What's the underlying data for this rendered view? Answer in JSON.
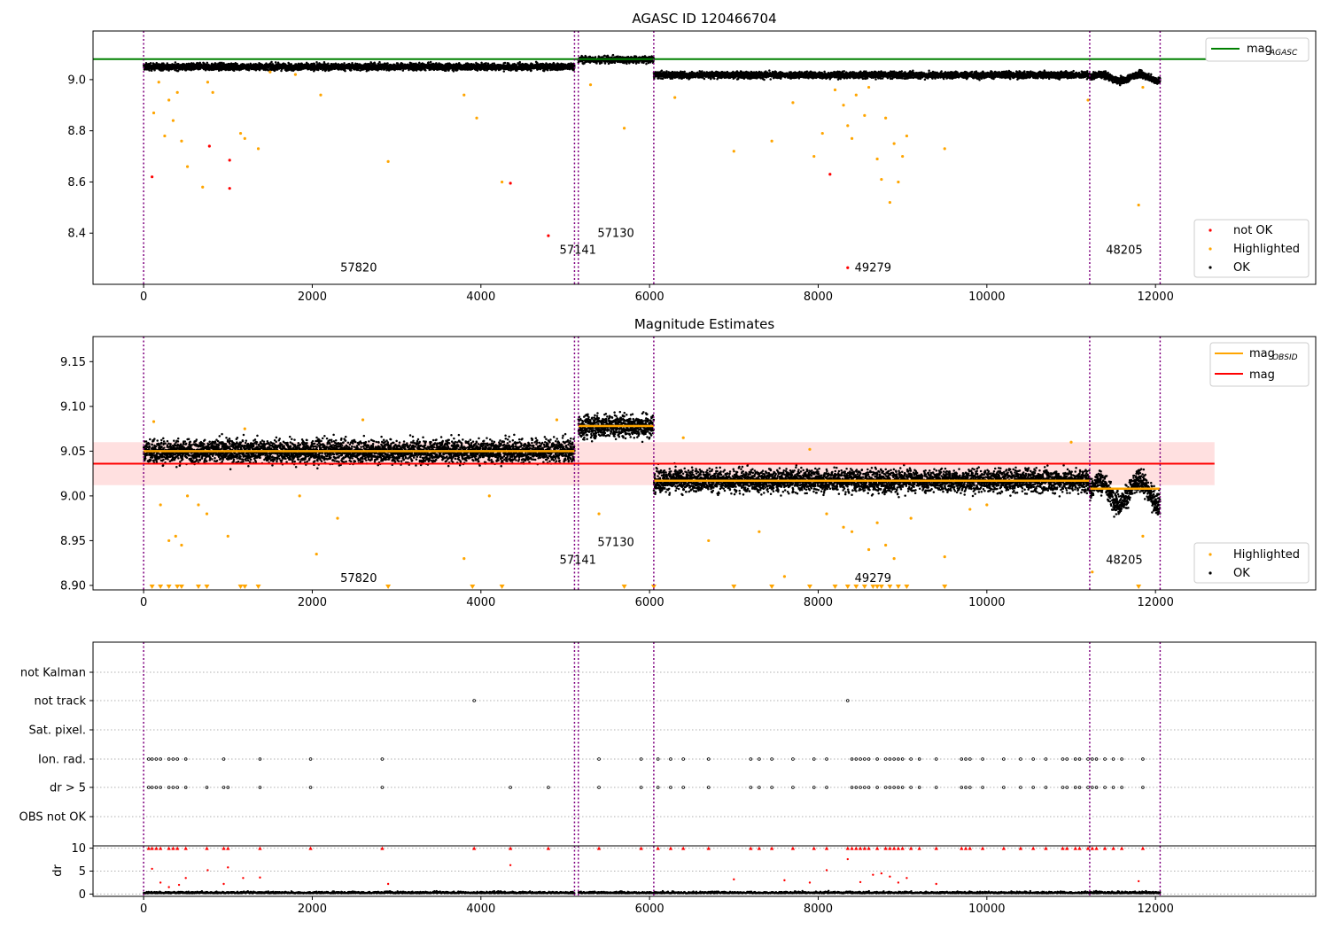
{
  "chart_data": [
    {
      "type": "scatter",
      "title": "AGASC ID 120466704",
      "xlim": [
        -600,
        13900
      ],
      "ylim": [
        8.2,
        9.19
      ],
      "xticks": [
        "0",
        "2000",
        "4000",
        "6000",
        "8000",
        "10000",
        "12000"
      ],
      "yticks": [
        "8.4",
        "8.6",
        "8.8",
        "9.0"
      ],
      "segment_lines": [
        0,
        5110,
        5155,
        6050,
        11220,
        12055
      ],
      "obsid_labels": [
        {
          "text": "57820",
          "x": 2550,
          "y": 8.25
        },
        {
          "text": "57141",
          "x": 5150,
          "y": 8.32
        },
        {
          "text": "57130",
          "x": 5600,
          "y": 8.385
        },
        {
          "text": "49279",
          "x": 8650,
          "y": 8.25
        },
        {
          "text": "48205",
          "x": 11630,
          "y": 8.32
        }
      ],
      "mag_agasc": 9.08,
      "segments": [
        {
          "x0": 0,
          "x1": 5110,
          "level": 9.05
        },
        {
          "x0": 5155,
          "x1": 6050,
          "level": 9.078
        },
        {
          "x0": 6050,
          "x1": 11220,
          "level": 9.018
        },
        {
          "x0": 11220,
          "x1": 12055,
          "level": 9.012
        }
      ],
      "not_ok_points": [
        [
          100,
          8.62
        ],
        [
          780,
          8.74
        ],
        [
          1020,
          8.685
        ],
        [
          1020,
          8.575
        ],
        [
          4350,
          8.595
        ],
        [
          4800,
          8.39
        ],
        [
          8140,
          8.63
        ],
        [
          8350,
          8.265
        ]
      ],
      "highlighted_points": [
        [
          120,
          8.87
        ],
        [
          180,
          8.99
        ],
        [
          250,
          8.78
        ],
        [
          300,
          8.92
        ],
        [
          350,
          8.84
        ],
        [
          400,
          8.95
        ],
        [
          450,
          8.76
        ],
        [
          520,
          8.66
        ],
        [
          700,
          8.58
        ],
        [
          760,
          8.99
        ],
        [
          820,
          8.95
        ],
        [
          1150,
          8.79
        ],
        [
          1200,
          8.77
        ],
        [
          1360,
          8.73
        ],
        [
          1500,
          9.03
        ],
        [
          1800,
          9.02
        ],
        [
          2100,
          8.94
        ],
        [
          2900,
          8.68
        ],
        [
          3800,
          8.94
        ],
        [
          3950,
          8.85
        ],
        [
          4250,
          8.6
        ],
        [
          5700,
          8.81
        ],
        [
          5300,
          8.98
        ],
        [
          6300,
          8.93
        ],
        [
          7000,
          8.72
        ],
        [
          7450,
          8.76
        ],
        [
          7700,
          8.91
        ],
        [
          7950,
          8.7
        ],
        [
          8050,
          8.79
        ],
        [
          8200,
          8.96
        ],
        [
          8300,
          8.9
        ],
        [
          8350,
          8.82
        ],
        [
          8400,
          8.77
        ],
        [
          8450,
          8.94
        ],
        [
          8550,
          8.86
        ],
        [
          8600,
          8.97
        ],
        [
          8700,
          8.69
        ],
        [
          8750,
          8.61
        ],
        [
          8800,
          8.85
        ],
        [
          8850,
          8.52
        ],
        [
          8900,
          8.75
        ],
        [
          8950,
          8.6
        ],
        [
          9000,
          8.7
        ],
        [
          9050,
          8.78
        ],
        [
          9500,
          8.73
        ],
        [
          11200,
          8.92
        ],
        [
          11800,
          8.51
        ],
        [
          11850,
          8.97
        ]
      ],
      "legend_entries": [
        {
          "label": "not OK",
          "color": "#ff0000"
        },
        {
          "label": "Highlighted",
          "color": "#ffa500"
        },
        {
          "label": "OK",
          "color": "#000000"
        }
      ],
      "legend_line": {
        "label": "mag",
        "subscript": "AGASC",
        "color": "#008000"
      }
    },
    {
      "type": "scatter",
      "title": "Magnitude Estimates",
      "xlim": [
        -600,
        13900
      ],
      "ylim": [
        8.895,
        9.178
      ],
      "xticks": [
        "0",
        "2000",
        "4000",
        "6000",
        "8000",
        "10000",
        "12000"
      ],
      "yticks": [
        "8.90",
        "8.95",
        "9.00",
        "9.05",
        "9.10",
        "9.15"
      ],
      "segment_lines": [
        0,
        5110,
        5155,
        6050,
        11220,
        12055
      ],
      "obsid_labels": [
        {
          "text": "57820",
          "x": 2550,
          "y": 8.904
        },
        {
          "text": "57141",
          "x": 5150,
          "y": 8.924
        },
        {
          "text": "57130",
          "x": 5600,
          "y": 8.944
        },
        {
          "text": "49279",
          "x": 8650,
          "y": 8.904
        },
        {
          "text": "48205",
          "x": 11630,
          "y": 8.924
        }
      ],
      "mag": 9.036,
      "mag_band": [
        9.012,
        9.06
      ],
      "mag_obsid_segments": [
        {
          "x0": 0,
          "x1": 5110,
          "level": 9.05
        },
        {
          "x0": 5155,
          "x1": 6050,
          "level": 9.078
        },
        {
          "x0": 6050,
          "x1": 11220,
          "level": 9.017
        },
        {
          "x0": 11220,
          "x1": 12055,
          "level": 9.008
        }
      ],
      "highlighted_points": [
        [
          120,
          9.083
        ],
        [
          200,
          8.99
        ],
        [
          300,
          8.95
        ],
        [
          380,
          8.955
        ],
        [
          450,
          8.945
        ],
        [
          520,
          9.0
        ],
        [
          650,
          8.99
        ],
        [
          750,
          8.98
        ],
        [
          1000,
          8.955
        ],
        [
          1200,
          9.075
        ],
        [
          1850,
          9.0
        ],
        [
          2050,
          8.935
        ],
        [
          2300,
          8.975
        ],
        [
          2600,
          9.085
        ],
        [
          3800,
          8.93
        ],
        [
          4100,
          9.0
        ],
        [
          4900,
          9.085
        ],
        [
          5400,
          8.98
        ],
        [
          6400,
          9.065
        ],
        [
          6700,
          8.95
        ],
        [
          7300,
          8.96
        ],
        [
          7600,
          8.91
        ],
        [
          7900,
          9.052
        ],
        [
          8100,
          8.98
        ],
        [
          8300,
          8.965
        ],
        [
          8400,
          8.96
        ],
        [
          8600,
          8.94
        ],
        [
          8700,
          8.97
        ],
        [
          8800,
          8.945
        ],
        [
          8900,
          8.93
        ],
        [
          9100,
          8.975
        ],
        [
          9500,
          8.932
        ],
        [
          9800,
          8.985
        ],
        [
          10000,
          8.99
        ],
        [
          11000,
          9.06
        ],
        [
          11250,
          8.915
        ],
        [
          11850,
          8.955
        ]
      ],
      "lower_limit_points": [
        100,
        200,
        300,
        400,
        450,
        650,
        750,
        1150,
        1200,
        1360,
        2900,
        3900,
        4250,
        5700,
        6050,
        7000,
        7450,
        7900,
        8200,
        8350,
        8450,
        8550,
        8650,
        8700,
        8750,
        8850,
        8950,
        9050,
        9500,
        11800
      ],
      "legend_entries": [
        {
          "label": "Highlighted",
          "color": "#ffa500"
        },
        {
          "label": "OK",
          "color": "#000000"
        }
      ],
      "legend_lines": [
        {
          "label": "mag",
          "subscript": "OBSID",
          "color": "#ffa500"
        },
        {
          "label": "mag",
          "subscript": "",
          "color": "#ff0000"
        }
      ]
    },
    {
      "type": "scatter",
      "xlim": [
        -600,
        13900
      ],
      "categories": [
        "not Kalman",
        "not track",
        "Sat. pixel.",
        "Ion. rad.",
        "dr > 5",
        "OBS not OK"
      ],
      "segment_lines": [
        0,
        5110,
        5155,
        6050,
        11220,
        12055
      ],
      "flag_points": {
        "not track": [
          3920,
          8350
        ],
        "Ion. rad.": [
          60,
          100,
          150,
          200,
          300,
          350,
          400,
          500,
          950,
          1380,
          1980,
          2830,
          5400,
          5900,
          6100,
          6250,
          6400,
          6700,
          7200,
          7300,
          7450,
          7700,
          7950,
          8100,
          8400,
          8450,
          8500,
          8550,
          8600,
          8700,
          8800,
          8850,
          8900,
          8950,
          9000,
          9100,
          9200,
          9400,
          9700,
          9750,
          9800,
          9950,
          10200,
          10400,
          10550,
          10700,
          10900,
          10950,
          11050,
          11100,
          11200,
          11250,
          11300,
          11400,
          11500,
          11600,
          11850
        ],
        "dr > 5": [
          60,
          100,
          150,
          200,
          300,
          350,
          400,
          500,
          750,
          950,
          1000,
          1380,
          1980,
          2830,
          4350,
          4800,
          5400,
          5900,
          6100,
          6250,
          6400,
          6700,
          7200,
          7300,
          7450,
          7700,
          7950,
          8100,
          8400,
          8450,
          8500,
          8550,
          8600,
          8700,
          8800,
          8850,
          8900,
          8950,
          9000,
          9100,
          9200,
          9400,
          9700,
          9750,
          9800,
          9950,
          10200,
          10400,
          10550,
          10700,
          10900,
          10950,
          11050,
          11100,
          11200,
          11250,
          11300,
          11400,
          11500,
          11600,
          11850
        ]
      }
    },
    {
      "type": "scatter",
      "ylabel": "dr",
      "xlim": [
        -600,
        13900
      ],
      "ylim": [
        -0.5,
        10.5
      ],
      "xticks": [
        "0",
        "2000",
        "4000",
        "6000",
        "8000",
        "10000",
        "12000"
      ],
      "yticks": [
        "0",
        "5",
        "10"
      ],
      "segment_lines": [
        0,
        5110,
        5155,
        6050,
        11220,
        12055
      ],
      "clipped_points": [
        60,
        100,
        150,
        200,
        300,
        350,
        400,
        500,
        750,
        950,
        1000,
        1380,
        1980,
        2830,
        3920,
        4350,
        4800,
        5400,
        5900,
        6100,
        6250,
        6400,
        6700,
        7200,
        7300,
        7450,
        7700,
        7950,
        8100,
        8350,
        8400,
        8450,
        8500,
        8550,
        8600,
        8700,
        8800,
        8850,
        8900,
        8950,
        9000,
        9100,
        9200,
        9400,
        9700,
        9750,
        9800,
        9950,
        10200,
        10400,
        10550,
        10700,
        10900,
        10950,
        11050,
        11100,
        11200,
        11250,
        11300,
        11400,
        11500,
        11600,
        11850
      ],
      "outlier_points": [
        [
          100,
          5.5
        ],
        [
          200,
          2.5
        ],
        [
          300,
          1.5
        ],
        [
          420,
          2.0
        ],
        [
          500,
          3.5
        ],
        [
          760,
          5.2
        ],
        [
          950,
          2.2
        ],
        [
          1000,
          5.8
        ],
        [
          1180,
          3.5
        ],
        [
          1380,
          3.6
        ],
        [
          2900,
          2.2
        ],
        [
          4350,
          6.3
        ],
        [
          7000,
          3.2
        ],
        [
          7600,
          3.0
        ],
        [
          7900,
          2.5
        ],
        [
          8100,
          5.2
        ],
        [
          8350,
          7.6
        ],
        [
          8500,
          2.6
        ],
        [
          8650,
          4.2
        ],
        [
          8750,
          4.5
        ],
        [
          8850,
          3.8
        ],
        [
          8950,
          2.5
        ],
        [
          9050,
          3.5
        ],
        [
          9400,
          2.2
        ],
        [
          11800,
          2.8
        ]
      ]
    }
  ]
}
